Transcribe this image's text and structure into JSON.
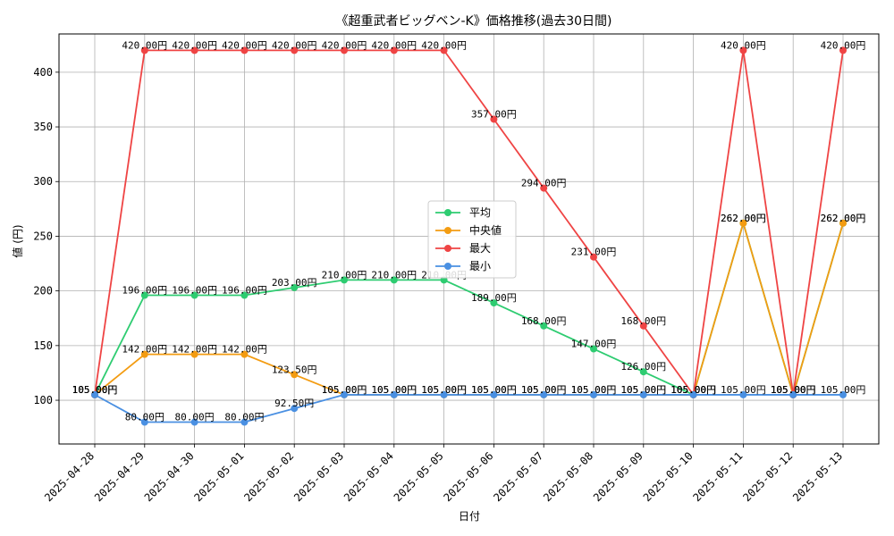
{
  "chart_data": {
    "type": "line",
    "title": "《超重武者ビッグベン-K》価格推移(過去30日間)",
    "xlabel": "日付",
    "ylabel": "値 (円)",
    "ylim": [
      60,
      435
    ],
    "yticks": [
      100,
      150,
      200,
      250,
      300,
      350,
      400
    ],
    "grid": true,
    "legend_position": "center",
    "label_suffix": "円",
    "categories": [
      "2025-04-28",
      "2025-04-29",
      "2025-04-30",
      "2025-05-01",
      "2025-05-02",
      "2025-05-03",
      "2025-05-04",
      "2025-05-05",
      "2025-05-06",
      "2025-05-07",
      "2025-05-08",
      "2025-05-09",
      "2025-05-10",
      "2025-05-11",
      "2025-05-12",
      "2025-05-13"
    ],
    "series": [
      {
        "name": "平均",
        "color": "#2ecc71",
        "values": [
          105,
          196,
          196,
          196,
          203,
          210,
          210,
          210,
          189,
          168,
          147,
          126,
          105,
          262,
          105,
          262
        ]
      },
      {
        "name": "中央値",
        "color": "#f39c12",
        "values": [
          105,
          142,
          142,
          142,
          123.5,
          105,
          105,
          105,
          105,
          105,
          105,
          105,
          105,
          262,
          105,
          262
        ]
      },
      {
        "name": "最大",
        "color": "#ef4444",
        "values": [
          105,
          420,
          420,
          420,
          420,
          420,
          420,
          420,
          357,
          294,
          231,
          168,
          105,
          420,
          105,
          420
        ]
      },
      {
        "name": "最小",
        "color": "#4a90e2",
        "values": [
          105,
          80,
          80,
          80,
          92.5,
          105,
          105,
          105,
          105,
          105,
          105,
          105,
          105,
          105,
          105,
          105
        ]
      }
    ]
  }
}
